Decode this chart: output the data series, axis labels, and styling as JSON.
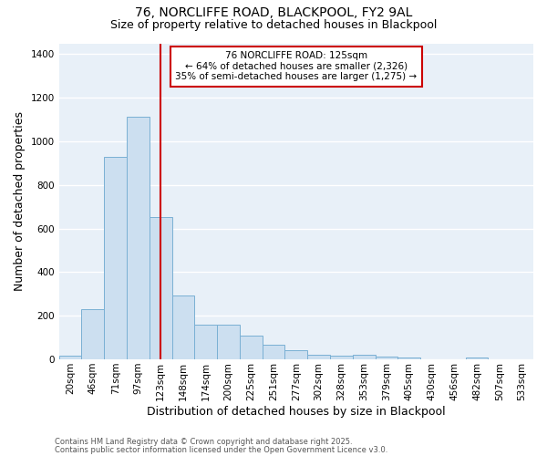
{
  "title1": "76, NORCLIFFE ROAD, BLACKPOOL, FY2 9AL",
  "title2": "Size of property relative to detached houses in Blackpool",
  "xlabel": "Distribution of detached houses by size in Blackpool",
  "ylabel": "Number of detached properties",
  "bar_labels": [
    "20sqm",
    "46sqm",
    "71sqm",
    "97sqm",
    "123sqm",
    "148sqm",
    "174sqm",
    "200sqm",
    "225sqm",
    "251sqm",
    "277sqm",
    "302sqm",
    "328sqm",
    "353sqm",
    "379sqm",
    "405sqm",
    "430sqm",
    "456sqm",
    "482sqm",
    "507sqm",
    "533sqm"
  ],
  "bar_values": [
    15,
    232,
    930,
    1115,
    655,
    295,
    160,
    160,
    108,
    68,
    40,
    22,
    18,
    22,
    12,
    8,
    0,
    0,
    7,
    0,
    0
  ],
  "bar_color": "#ccdff0",
  "bar_edge_color": "#7ab0d4",
  "annotation_title": "76 NORCLIFFE ROAD: 125sqm",
  "annotation_line2": "← 64% of detached houses are smaller (2,326)",
  "annotation_line3": "35% of semi-detached houses are larger (1,275) →",
  "annotation_box_facecolor": "#ffffff",
  "annotation_box_edgecolor": "#cc0000",
  "line_color": "#cc0000",
  "line_idx": 4,
  "ylim": [
    0,
    1450
  ],
  "yticks": [
    0,
    200,
    400,
    600,
    800,
    1000,
    1200,
    1400
  ],
  "footnote1": "Contains HM Land Registry data © Crown copyright and database right 2025.",
  "footnote2": "Contains public sector information licensed under the Open Government Licence v3.0.",
  "fig_bg_color": "#ffffff",
  "plot_bg_color": "#e8f0f8",
  "grid_color": "#ffffff",
  "title_fontsize": 10,
  "subtitle_fontsize": 9,
  "axis_label_fontsize": 9,
  "tick_fontsize": 7.5,
  "footnote_fontsize": 6,
  "footnote_color": "#555555"
}
